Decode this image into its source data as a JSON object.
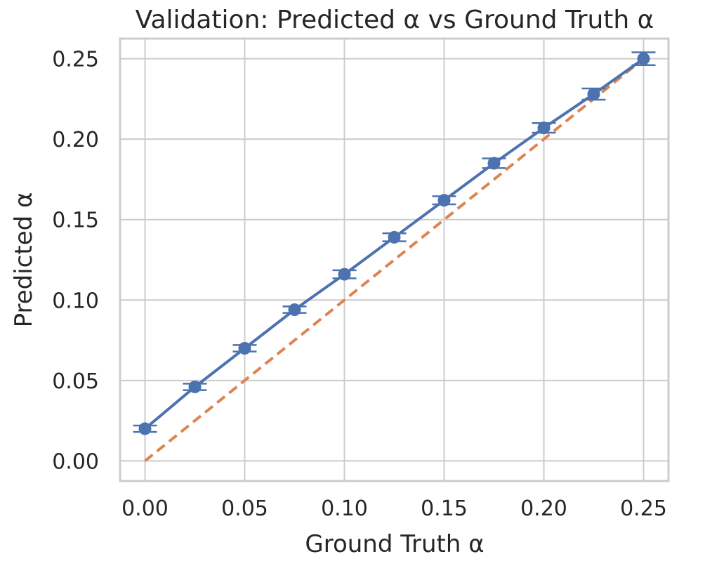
{
  "chart_data": {
    "type": "line",
    "title": "Validation: Predicted α vs Ground Truth α",
    "xlabel": "Ground Truth α",
    "ylabel": "Predicted α",
    "xlim": [
      -0.0125,
      0.2625
    ],
    "ylim": [
      -0.0125,
      0.2625
    ],
    "xticks": [
      "0.00",
      "0.05",
      "0.10",
      "0.15",
      "0.20",
      "0.25"
    ],
    "yticks": [
      "0.00",
      "0.05",
      "0.10",
      "0.15",
      "0.20",
      "0.25"
    ],
    "grid": true,
    "series": [
      {
        "style": "line-marker-errorbar",
        "color": "#4c72b0",
        "x": [
          0.0,
          0.025,
          0.05,
          0.075,
          0.1,
          0.125,
          0.15,
          0.175,
          0.2,
          0.225,
          0.25
        ],
        "y": [
          0.02,
          0.046,
          0.07,
          0.094,
          0.116,
          0.139,
          0.162,
          0.185,
          0.207,
          0.228,
          0.25
        ],
        "error": [
          0.002,
          0.002,
          0.002,
          0.002,
          0.0025,
          0.0025,
          0.0025,
          0.003,
          0.003,
          0.0035,
          0.004
        ]
      },
      {
        "style": "dashed-line",
        "color": "#dd8452",
        "x": [
          0.0,
          0.25
        ],
        "y": [
          0.0,
          0.25
        ]
      }
    ]
  }
}
